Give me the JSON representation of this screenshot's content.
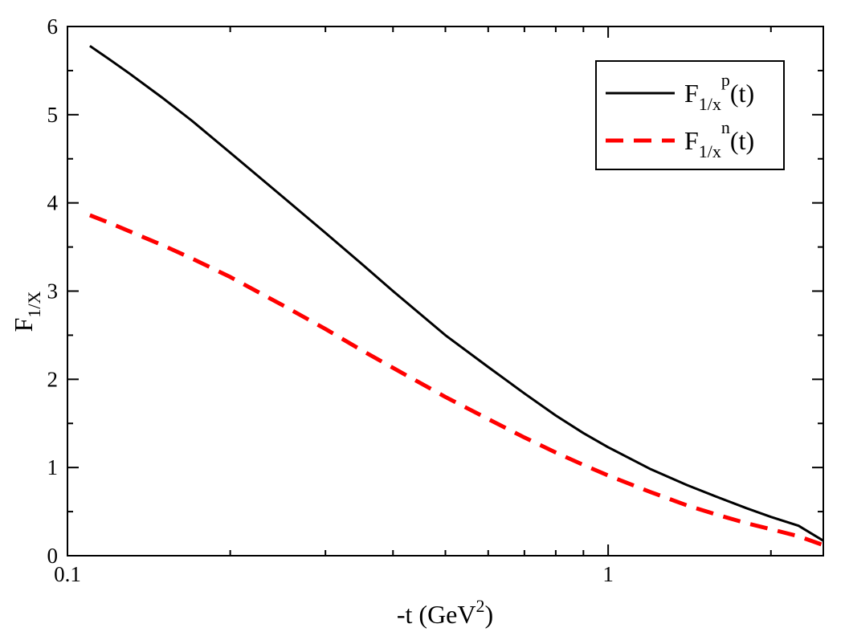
{
  "chart_data": {
    "type": "line",
    "x_scale": "log",
    "xlim": [
      0.1,
      2.5
    ],
    "ylim": [
      0,
      6
    ],
    "x_ticks": [
      {
        "value": 0.1,
        "label": "0.1"
      },
      {
        "value": 1,
        "label": "1"
      }
    ],
    "x_minor_ticks": [
      0.2,
      0.3,
      0.4,
      0.5,
      0.6,
      0.7,
      0.8,
      0.9,
      2
    ],
    "y_ticks": [
      {
        "value": 0,
        "label": "0"
      },
      {
        "value": 1,
        "label": "1"
      },
      {
        "value": 2,
        "label": "2"
      },
      {
        "value": 3,
        "label": "3"
      },
      {
        "value": 4,
        "label": "4"
      },
      {
        "value": 5,
        "label": "5"
      },
      {
        "value": 6,
        "label": "6"
      }
    ],
    "xlabel": {
      "main": "-t (GeV",
      "sup": "2",
      "end": ")"
    },
    "ylabel": {
      "main": "F",
      "sub": "1/X"
    },
    "grid": false,
    "legend_position": "top-right",
    "series": [
      {
        "legend": {
          "base": "F",
          "sub": "1/x",
          "sup": "p",
          "tail": "(t)"
        },
        "color": "#000000",
        "dash": "solid",
        "points": [
          [
            0.11,
            5.78
          ],
          [
            0.12,
            5.62
          ],
          [
            0.13,
            5.47
          ],
          [
            0.15,
            5.19
          ],
          [
            0.17,
            4.93
          ],
          [
            0.2,
            4.57
          ],
          [
            0.25,
            4.07
          ],
          [
            0.3,
            3.66
          ],
          [
            0.35,
            3.31
          ],
          [
            0.4,
            3.0
          ],
          [
            0.5,
            2.5
          ],
          [
            0.6,
            2.14
          ],
          [
            0.7,
            1.84
          ],
          [
            0.8,
            1.59
          ],
          [
            0.9,
            1.39
          ],
          [
            1.0,
            1.23
          ],
          [
            1.2,
            0.98
          ],
          [
            1.4,
            0.8
          ],
          [
            1.6,
            0.66
          ],
          [
            1.8,
            0.54
          ],
          [
            2.0,
            0.44
          ],
          [
            2.25,
            0.34
          ],
          [
            2.5,
            0.17
          ]
        ]
      },
      {
        "legend": {
          "base": "F",
          "sub": "1/x",
          "sup": "n",
          "tail": "(t)"
        },
        "color": "#ff0000",
        "dash": "dashed",
        "points": [
          [
            0.11,
            3.86
          ],
          [
            0.12,
            3.77
          ],
          [
            0.13,
            3.68
          ],
          [
            0.15,
            3.52
          ],
          [
            0.17,
            3.37
          ],
          [
            0.2,
            3.16
          ],
          [
            0.25,
            2.84
          ],
          [
            0.3,
            2.57
          ],
          [
            0.35,
            2.33
          ],
          [
            0.4,
            2.13
          ],
          [
            0.5,
            1.8
          ],
          [
            0.6,
            1.55
          ],
          [
            0.7,
            1.34
          ],
          [
            0.8,
            1.17
          ],
          [
            0.9,
            1.03
          ],
          [
            1.0,
            0.91
          ],
          [
            1.2,
            0.72
          ],
          [
            1.4,
            0.57
          ],
          [
            1.6,
            0.46
          ],
          [
            1.8,
            0.37
          ],
          [
            2.0,
            0.3
          ],
          [
            2.25,
            0.22
          ],
          [
            2.5,
            0.12
          ]
        ]
      }
    ]
  }
}
